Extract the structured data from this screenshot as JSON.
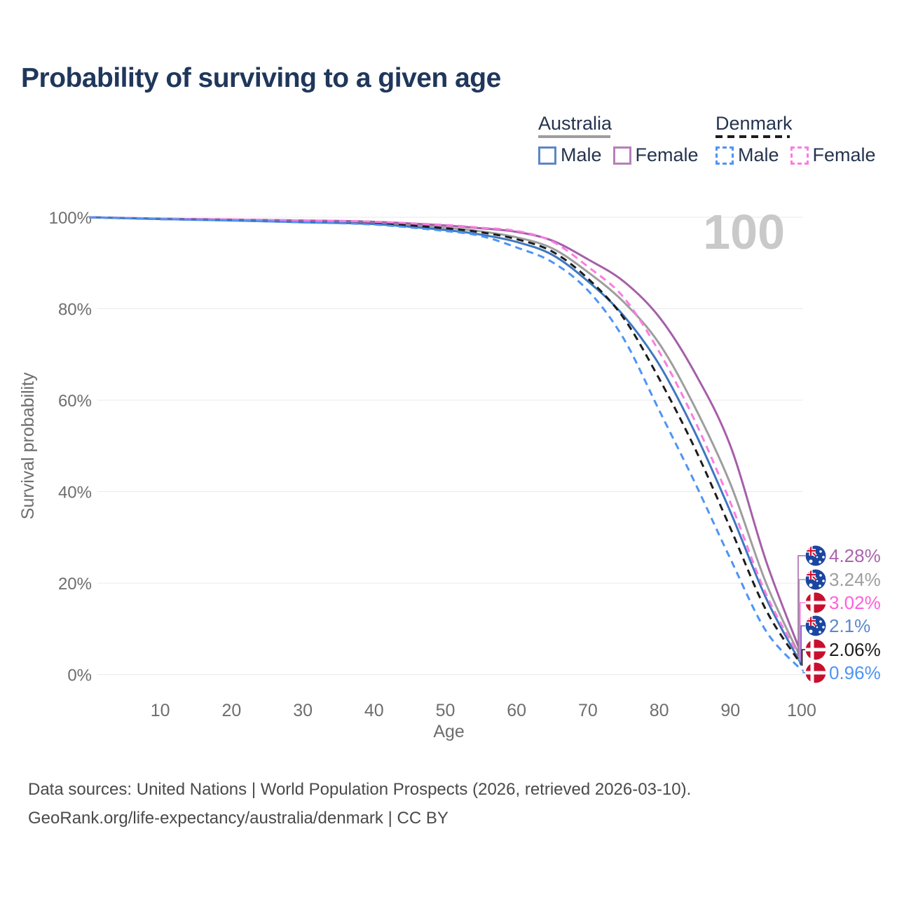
{
  "title": "Probability of surviving to a given age",
  "watermark": "100",
  "legend": {
    "australia": {
      "label": "Australia",
      "line_color": "#9e9e9e",
      "line_style": "solid",
      "male_label": "Male",
      "male_color": "#5b87c5",
      "female_label": "Female",
      "female_color": "#b77fb8"
    },
    "denmark": {
      "label": "Denmark",
      "line_color": "#1c1c1c",
      "line_style": "dashed",
      "male_label": "Male",
      "male_color": "#4d94f5",
      "female_label": "Female",
      "female_color": "#fb7ce0"
    }
  },
  "chart_data": {
    "type": "line",
    "title": "Probability of surviving to a given age",
    "xlabel": "Age",
    "ylabel": "Survival probability",
    "xlim": [
      0,
      100
    ],
    "ylim": [
      0,
      100
    ],
    "x_ticks": [
      10,
      20,
      30,
      40,
      50,
      60,
      70,
      80,
      90,
      100
    ],
    "y_ticks": [
      0,
      20,
      40,
      60,
      80,
      100
    ],
    "y_tick_labels": [
      "0%",
      "20%",
      "40%",
      "60%",
      "80%",
      "100%"
    ],
    "grid": "horizontal",
    "hovered_age": "100",
    "ages": [
      0,
      10,
      20,
      30,
      40,
      50,
      55,
      60,
      65,
      70,
      75,
      80,
      85,
      90,
      95,
      100
    ],
    "series": [
      {
        "id": "australia-female",
        "name": "Australia Female",
        "country": "Australia",
        "sex": "Female",
        "style": "solid",
        "color": "#a55fa8",
        "label_color": "#a964ae",
        "flag": "au",
        "end_label": "4.28%",
        "values": [
          100,
          99.7,
          99.5,
          99.3,
          99.0,
          98.2,
          97.6,
          96.8,
          94.9,
          90.8,
          86.0,
          78.2,
          66.0,
          50.0,
          24.8,
          4.28
        ]
      },
      {
        "id": "australia-total",
        "name": "Australia",
        "country": "Australia",
        "sex": "Both",
        "style": "solid",
        "color": "#9e9e9e",
        "label_color": "#9e9e9e",
        "flag": "au",
        "end_label": "3.24%",
        "values": [
          100,
          99.65,
          99.4,
          99.1,
          98.7,
          97.7,
          96.9,
          95.6,
          93.2,
          88.0,
          81.5,
          72.4,
          58.5,
          41.7,
          20.0,
          3.24
        ]
      },
      {
        "id": "denmark-female",
        "name": "Denmark Female",
        "country": "Denmark",
        "sex": "Female",
        "style": "dashed",
        "color": "#fb7ce0",
        "label_color": "#ff5fd9",
        "flag": "dk",
        "end_label": "3.02%",
        "values": [
          100,
          99.7,
          99.5,
          99.3,
          99.0,
          98.3,
          97.7,
          97.0,
          94.7,
          89.2,
          82.5,
          70.6,
          55.5,
          37.6,
          17.6,
          3.02
        ]
      },
      {
        "id": "australia-male",
        "name": "Australia Male",
        "country": "Australia",
        "sex": "Male",
        "style": "solid",
        "color": "#3d78c0",
        "label_color": "#5b87cd",
        "flag": "au",
        "end_label": "2.1%",
        "values": [
          100,
          99.6,
          99.3,
          98.9,
          98.5,
          97.2,
          96.2,
          94.6,
          91.8,
          86.0,
          78.5,
          67.8,
          53.0,
          35.6,
          16.7,
          2.1
        ]
      },
      {
        "id": "denmark-total",
        "name": "Denmark",
        "country": "Denmark",
        "sex": "Both",
        "style": "dashed",
        "color": "#1c1c1c",
        "label_color": "#1c1c1c",
        "flag": "dk",
        "end_label": "2.06%",
        "values": [
          100,
          99.6,
          99.4,
          99.1,
          98.7,
          97.6,
          96.7,
          95.2,
          92.5,
          86.6,
          78.0,
          64.7,
          49.5,
          32.0,
          14.1,
          2.06
        ]
      },
      {
        "id": "denmark-male",
        "name": "Denmark Male",
        "country": "Denmark",
        "sex": "Male",
        "style": "dashed",
        "color": "#4d94f5",
        "label_color": "#4d94f5",
        "flag": "dk",
        "end_label": "0.96%",
        "values": [
          100,
          99.6,
          99.3,
          98.9,
          98.4,
          97.0,
          95.9,
          93.4,
          90.2,
          84.0,
          73.5,
          57.8,
          42.0,
          25.3,
          9.5,
          0.96
        ]
      }
    ]
  },
  "footer": {
    "line1": "Data sources: United Nations | World Population Prospects (2026, retrieved 2026-03-10).",
    "line2": "GeoRank.org/life-expectancy/australia/denmark | CC BY"
  }
}
